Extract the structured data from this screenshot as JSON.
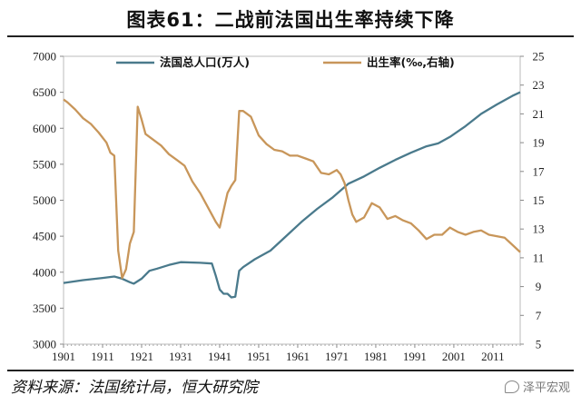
{
  "figure": {
    "title": "图表61：二战前法国出生率持续下降",
    "source": "资料来源：法国统计局，恒大研究院",
    "watermark": "泽平宏观"
  },
  "chart_data": {
    "type": "line",
    "title": "",
    "xlabel": "",
    "ylabel_left": "",
    "ylabel_right": "",
    "xlim": [
      1901,
      2018
    ],
    "x_ticks": [
      1901,
      1911,
      1921,
      1931,
      1941,
      1951,
      1961,
      1971,
      1981,
      1991,
      2001,
      2011
    ],
    "y_left": {
      "lim": [
        3000,
        7000
      ],
      "ticks": [
        3000,
        3500,
        4000,
        4500,
        5000,
        5500,
        6000,
        6500,
        7000
      ]
    },
    "y_right": {
      "lim": [
        5,
        25
      ],
      "ticks": [
        5,
        7,
        9,
        11,
        13,
        15,
        17,
        19,
        21,
        23,
        25
      ]
    },
    "grid": false,
    "legend_position": "top",
    "series": [
      {
        "name": "法国总人口(万人)",
        "axis": "left",
        "color": "#4a7a8c",
        "x": [
          1901,
          1906,
          1911,
          1914,
          1916,
          1918,
          1919,
          1921,
          1923,
          1925,
          1928,
          1931,
          1936,
          1939,
          1940,
          1941,
          1942,
          1943,
          1944,
          1945,
          1946,
          1947,
          1950,
          1954,
          1958,
          1962,
          1966,
          1970,
          1974,
          1978,
          1982,
          1986,
          1990,
          1994,
          1997,
          2000,
          2004,
          2008,
          2012,
          2016,
          2018
        ],
        "y": [
          3850,
          3890,
          3920,
          3940,
          3910,
          3860,
          3840,
          3910,
          4020,
          4050,
          4100,
          4140,
          4130,
          4120,
          3950,
          3760,
          3700,
          3700,
          3650,
          3660,
          4020,
          4070,
          4180,
          4300,
          4500,
          4700,
          4880,
          5040,
          5230,
          5330,
          5450,
          5560,
          5660,
          5750,
          5790,
          5880,
          6030,
          6200,
          6330,
          6450,
          6500
        ]
      },
      {
        "name": "出生率(‰,右轴)",
        "axis": "right",
        "color": "#c8965a",
        "x": [
          1901,
          1902,
          1904,
          1906,
          1908,
          1910,
          1912,
          1913,
          1914,
          1915,
          1916,
          1917,
          1918,
          1919,
          1920,
          1921,
          1922,
          1924,
          1926,
          1928,
          1930,
          1932,
          1934,
          1936,
          1938,
          1940,
          1941,
          1942,
          1943,
          1944,
          1945,
          1946,
          1947,
          1949,
          1951,
          1953,
          1955,
          1957,
          1959,
          1961,
          1963,
          1965,
          1967,
          1969,
          1971,
          1972,
          1973,
          1974,
          1975,
          1976,
          1978,
          1980,
          1982,
          1984,
          1986,
          1988,
          1990,
          1992,
          1994,
          1996,
          1998,
          2000,
          2002,
          2004,
          2006,
          2008,
          2010,
          2012,
          2014,
          2016,
          2018
        ],
        "y": [
          22.0,
          21.8,
          21.3,
          20.7,
          20.3,
          19.7,
          19.0,
          18.3,
          18.1,
          11.5,
          9.6,
          10.2,
          12.0,
          12.8,
          21.5,
          20.6,
          19.6,
          19.2,
          18.8,
          18.2,
          17.8,
          17.4,
          16.3,
          15.5,
          14.5,
          13.5,
          13.1,
          14.3,
          15.5,
          16.0,
          16.4,
          21.2,
          21.2,
          20.8,
          19.5,
          18.9,
          18.5,
          18.4,
          18.1,
          18.1,
          17.9,
          17.7,
          16.9,
          16.8,
          17.1,
          16.8,
          16.2,
          15.0,
          14.0,
          13.5,
          13.8,
          14.8,
          14.5,
          13.7,
          13.9,
          13.6,
          13.4,
          12.9,
          12.3,
          12.6,
          12.6,
          13.1,
          12.8,
          12.6,
          12.8,
          12.9,
          12.6,
          12.5,
          12.4,
          11.9,
          11.4
        ]
      }
    ]
  }
}
